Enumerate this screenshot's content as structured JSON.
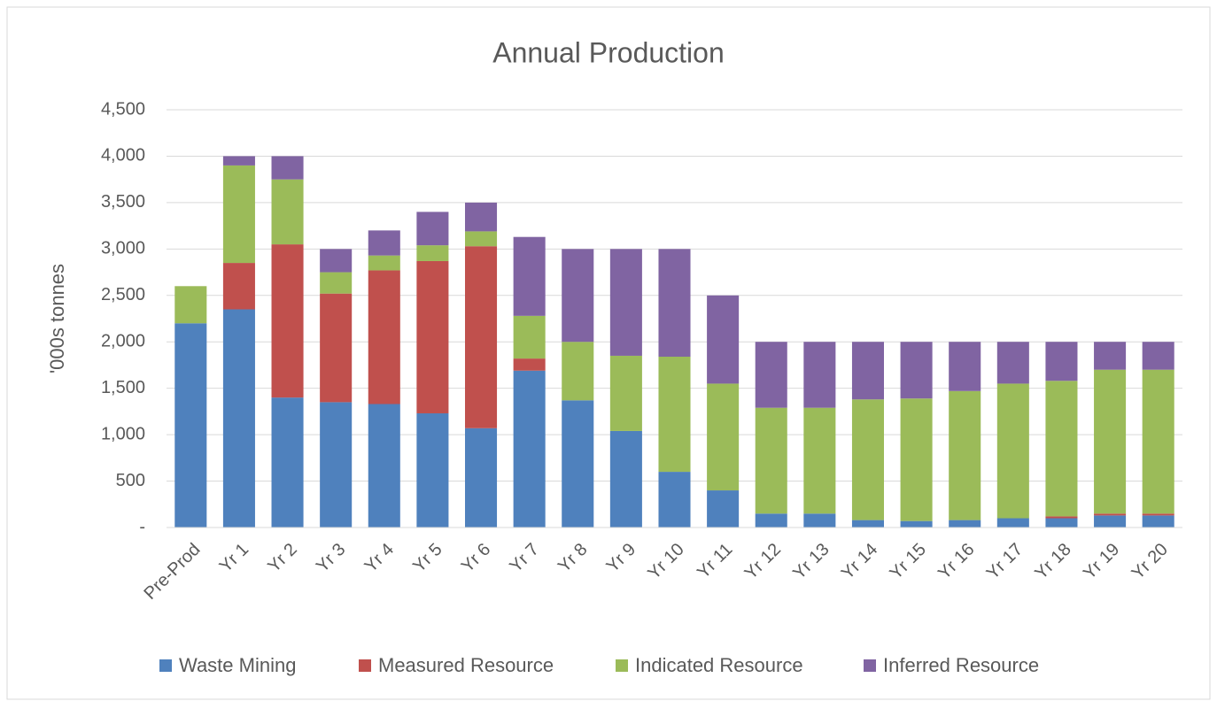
{
  "chart_data": {
    "type": "stacked_bar",
    "title": "Annual Production",
    "y_label": "'000s tonnes",
    "categories": [
      "Pre-Prod",
      "Yr 1",
      "Yr 2",
      "Yr 3",
      "Yr 4",
      "Yr 5",
      "Yr 6",
      "Yr 7",
      "Yr 8",
      "Yr 9",
      "Yr 10",
      "Yr 11",
      "Yr 12",
      "Yr 13",
      "Yr 14",
      "Yr 15",
      "Yr 16",
      "Yr 17",
      "Yr 18",
      "Yr 19",
      "Yr 20"
    ],
    "series": [
      {
        "name": "Waste Mining",
        "color": "#4f81bd",
        "values": [
          2200,
          2350,
          1400,
          1350,
          1330,
          1230,
          1070,
          1690,
          1370,
          1040,
          600,
          400,
          150,
          150,
          80,
          70,
          80,
          100,
          100,
          130,
          130
        ]
      },
      {
        "name": "Measured Resource",
        "color": "#c0504d",
        "values": [
          0,
          500,
          1650,
          1170,
          1440,
          1640,
          1960,
          130,
          0,
          0,
          0,
          0,
          0,
          0,
          0,
          0,
          0,
          0,
          20,
          20,
          20
        ]
      },
      {
        "name": "Indicated Resource",
        "color": "#9bbb59",
        "values": [
          400,
          1050,
          700,
          230,
          160,
          170,
          160,
          460,
          630,
          810,
          1240,
          1150,
          1140,
          1140,
          1300,
          1320,
          1390,
          1450,
          1460,
          1550,
          1550
        ]
      },
      {
        "name": "Inferred Resource",
        "color": "#8064a2",
        "values": [
          0,
          100,
          250,
          250,
          270,
          360,
          310,
          850,
          1000,
          1150,
          1160,
          950,
          710,
          710,
          620,
          610,
          530,
          450,
          420,
          300,
          300
        ]
      }
    ],
    "ylim": [
      0,
      4500
    ],
    "yticks": [
      {
        "value": 0,
        "label": "-"
      },
      500,
      {
        "value": 1000,
        "label": "1,000"
      },
      {
        "value": 1500,
        "label": "1,500"
      },
      {
        "value": 2000,
        "label": "2,000"
      },
      {
        "value": 2500,
        "label": "2,500"
      },
      {
        "value": 3000,
        "label": "3,000"
      },
      {
        "value": 3500,
        "label": "3,500"
      },
      {
        "value": 4000,
        "label": "4,000"
      },
      {
        "value": 4500,
        "label": "4,500"
      }
    ],
    "grid": true,
    "legend": "bottom"
  }
}
